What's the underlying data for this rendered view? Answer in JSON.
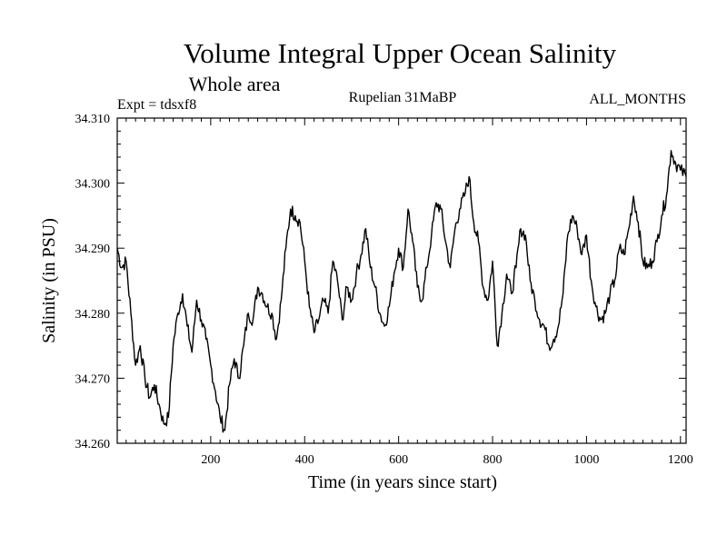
{
  "chart_data": {
    "type": "line",
    "title": "Volume Integral Upper Ocean Salinity",
    "subtitle": "Whole area",
    "experiment_label": "Expt = tdsxf8",
    "period_label": "Rupelian  31MaBP",
    "months_label": "ALL_MONTHS",
    "xlabel": "Time (in years since start)",
    "ylabel": "Salinity (in PSU)",
    "xlim": [
      1,
      1212
    ],
    "ylim": [
      34.26,
      34.31
    ],
    "x_ticks": [
      200,
      400,
      600,
      800,
      1000,
      1200
    ],
    "y_ticks": [
      "34.260",
      "34.270",
      "34.280",
      "34.290",
      "34.300",
      "34.310"
    ],
    "grid": false,
    "series": [
      {
        "name": "Upper Ocean Salinity",
        "color": "#000000",
        "x": [
          1,
          10,
          20,
          30,
          40,
          50,
          60,
          70,
          80,
          90,
          100,
          110,
          120,
          130,
          140,
          150,
          160,
          170,
          180,
          190,
          200,
          210,
          220,
          230,
          240,
          250,
          260,
          270,
          280,
          290,
          300,
          310,
          320,
          330,
          340,
          350,
          360,
          370,
          380,
          390,
          400,
          410,
          420,
          430,
          440,
          450,
          460,
          470,
          480,
          490,
          500,
          510,
          520,
          530,
          540,
          550,
          560,
          570,
          580,
          590,
          600,
          610,
          620,
          630,
          640,
          650,
          660,
          670,
          680,
          690,
          700,
          710,
          720,
          730,
          740,
          750,
          760,
          770,
          780,
          790,
          800,
          810,
          820,
          830,
          840,
          850,
          860,
          870,
          880,
          890,
          900,
          910,
          920,
          930,
          940,
          950,
          960,
          970,
          980,
          990,
          1000,
          1010,
          1020,
          1030,
          1040,
          1050,
          1060,
          1070,
          1080,
          1090,
          1100,
          1110,
          1120,
          1130,
          1140,
          1150,
          1160,
          1170,
          1180,
          1190,
          1200,
          1212
        ],
        "values": [
          34.29,
          34.287,
          34.288,
          34.28,
          34.272,
          34.275,
          34.27,
          34.267,
          34.269,
          34.266,
          34.263,
          34.264,
          34.275,
          34.28,
          34.283,
          34.278,
          34.274,
          34.282,
          34.279,
          34.276,
          34.272,
          34.268,
          34.264,
          34.262,
          34.269,
          34.273,
          34.27,
          34.275,
          34.28,
          34.279,
          34.284,
          34.283,
          34.281,
          34.28,
          34.276,
          34.282,
          34.29,
          34.296,
          34.295,
          34.294,
          34.288,
          34.281,
          34.277,
          34.279,
          34.282,
          34.28,
          34.288,
          34.285,
          34.279,
          34.284,
          34.282,
          34.286,
          34.289,
          34.293,
          34.287,
          34.284,
          34.28,
          34.278,
          34.281,
          34.286,
          34.29,
          34.287,
          34.296,
          34.291,
          34.284,
          34.282,
          34.287,
          34.292,
          34.297,
          34.296,
          34.291,
          34.287,
          34.293,
          34.296,
          34.298,
          34.301,
          34.294,
          34.291,
          34.284,
          34.282,
          34.288,
          34.275,
          34.28,
          34.286,
          34.283,
          34.287,
          34.293,
          34.292,
          34.285,
          34.282,
          34.279,
          34.278,
          34.275,
          34.276,
          34.278,
          34.283,
          34.292,
          34.295,
          34.293,
          34.289,
          34.292,
          34.285,
          34.281,
          34.279,
          34.28,
          34.283,
          34.285,
          34.29,
          34.289,
          34.293,
          34.298,
          34.294,
          34.288,
          34.287,
          34.288,
          34.291,
          34.295,
          34.298,
          34.305,
          34.303,
          34.302,
          34.301
        ]
      }
    ]
  }
}
